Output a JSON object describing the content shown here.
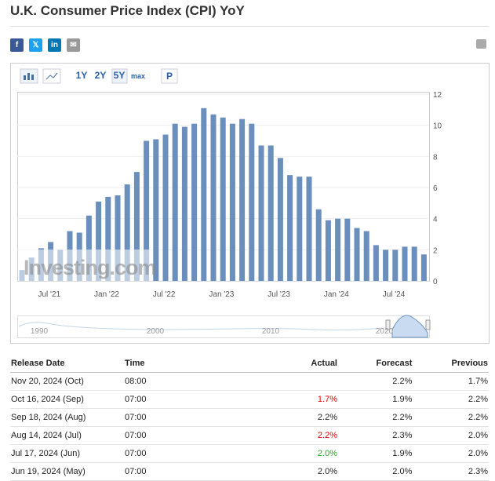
{
  "header": {
    "title": "U.K. Consumer Price Index (CPI) YoY"
  },
  "toolbar": {
    "ranges": [
      "1Y",
      "2Y",
      "5Y",
      "max"
    ],
    "print": "P"
  },
  "chart_data": {
    "type": "bar",
    "color": "#6a8fbd",
    "categories": [
      null,
      null,
      null,
      null,
      "Jul '21",
      null,
      null,
      null,
      null,
      null,
      "Jan '22",
      null,
      null,
      null,
      null,
      null,
      "Jul '22",
      null,
      null,
      null,
      null,
      null,
      "Jan '23",
      null,
      null,
      null,
      null,
      null,
      "Jul '23",
      null,
      null,
      null,
      null,
      null,
      "Jan '24",
      null,
      null,
      null,
      null,
      null,
      "Jul '24",
      null,
      null
    ],
    "values": [
      0.7,
      1.5,
      2.1,
      2.5,
      2.0,
      3.2,
      3.1,
      4.2,
      5.1,
      5.4,
      5.5,
      6.2,
      7.0,
      9.0,
      9.1,
      9.4,
      10.1,
      9.9,
      10.1,
      11.1,
      10.7,
      10.5,
      10.1,
      10.4,
      10.1,
      8.7,
      8.7,
      7.9,
      6.8,
      6.7,
      6.7,
      4.6,
      3.9,
      4.0,
      4.0,
      3.4,
      3.2,
      2.3,
      2.0,
      2.0,
      2.2,
      2.2,
      1.7
    ],
    "ylim": [
      0,
      12
    ],
    "yticks": [
      0,
      2,
      4,
      6,
      8,
      10,
      12
    ],
    "grid": true,
    "watermark": "Investing.com",
    "navigator_labels": [
      "1990",
      "2000",
      "2010",
      "2020"
    ]
  },
  "table": {
    "columns": [
      "Release Date",
      "Time",
      "Actual",
      "Forecast",
      "Previous"
    ],
    "rows": [
      {
        "date": "Nov 20, 2024 (Oct)",
        "time": "08:00",
        "forecast": "2.2%",
        "previous": "1.7%"
      },
      {
        "date": "Oct 16, 2024 (Sep)",
        "time": "07:00",
        "actual": "1.7%",
        "actual_color": "#d00",
        "forecast": "1.9%",
        "previous": "2.2%"
      },
      {
        "date": "Sep 18, 2024 (Aug)",
        "time": "07:00",
        "actual": "2.2%",
        "actual_color": "#222",
        "forecast": "2.2%",
        "previous": "2.2%"
      },
      {
        "date": "Aug 14, 2024 (Jul)",
        "time": "07:00",
        "actual": "2.2%",
        "actual_color": "#d00",
        "forecast": "2.3%",
        "previous": "2.0%"
      },
      {
        "date": "Jul 17, 2024 (Jun)",
        "time": "07:00",
        "actual": "2.0%",
        "actual_color": "#2a2",
        "forecast": "1.9%",
        "previous": "2.0%"
      },
      {
        "date": "Jun 19, 2024 (May)",
        "time": "07:00",
        "actual": "2.0%",
        "actual_color": "#222",
        "forecast": "2.0%",
        "previous": "2.3%"
      }
    ]
  }
}
